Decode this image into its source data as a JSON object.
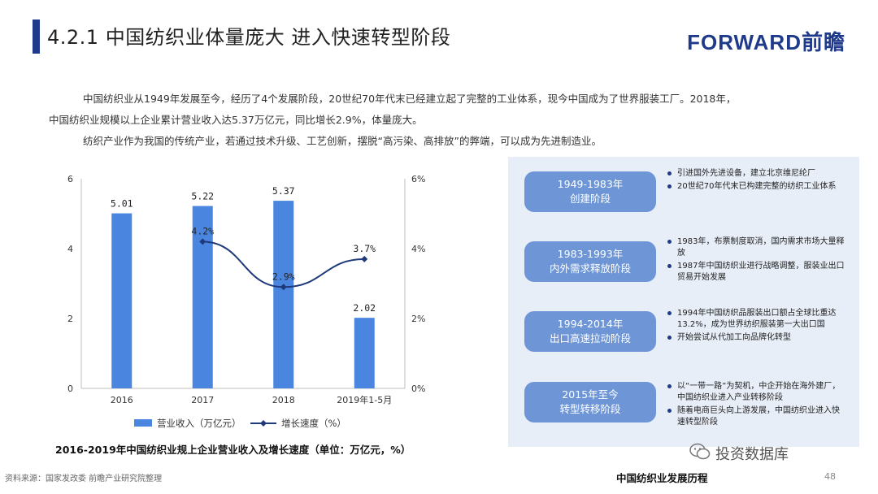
{
  "header": {
    "title": "4.2.1 中国纺织业体量庞大 进入快速转型阶段",
    "brand": "FORWARD前瞻"
  },
  "intro": {
    "line1": "中国纺织业从1949年发展至今，经历了4个发展阶段，20世纪70年代末已经建立起了完整的工业体系，现今中国成为了世界服装工厂。2018年，",
    "line2": "中国纺织业规模以上企业累计营业收入达5.37万亿元，同比增长2.9%，体量庞大。",
    "line3": "纺织产业作为我国的传统产业，若通过技术升级、工艺创新，摆脱“高污染、高排放”的弊端，可以成为先进制造业。"
  },
  "chart_data": {
    "type": "bar",
    "title": "2016-2019年中国纺织业规上企业营业收入及增长速度（单位：万亿元，%）",
    "categories": [
      "2016",
      "2017",
      "2018",
      "2019年1-5月"
    ],
    "series": [
      {
        "name": "营业收入（万亿元）",
        "type": "bar",
        "axis": "left",
        "values": [
          5.01,
          5.22,
          5.37,
          2.02
        ],
        "labels": [
          "5.01",
          "5.22",
          "5.37",
          "2.02"
        ]
      },
      {
        "name": "增长速度（%）",
        "type": "line",
        "axis": "right",
        "values": [
          null,
          4.2,
          2.9,
          3.7
        ],
        "labels": [
          "",
          "4.2%",
          "2.9%",
          "3.7%"
        ]
      }
    ],
    "ylim": [
      0,
      6
    ],
    "y_ticks": [
      "0",
      "2",
      "4",
      "6"
    ],
    "y2lim": [
      0,
      6
    ],
    "y2_ticks": [
      "0%",
      "2%",
      "4%",
      "6%"
    ],
    "legend_position": "bottom",
    "grid": false,
    "colors": {
      "bar": "#4a86e0",
      "line": "#1f3a7a"
    }
  },
  "stages": [
    {
      "period": "1949-1983年",
      "name": "创建阶段",
      "points": [
        "引进国外先进设备，建立北京维尼纶厂",
        "20世纪70年代末已构建完整的纺织工业体系"
      ]
    },
    {
      "period": "1983-1993年",
      "name": "内外需求释放阶段",
      "points": [
        "1983年，布票制度取消，国内需求市场大量释放",
        "1987年中国纺织业进行战略调整，服装业出口贸易开始发展"
      ]
    },
    {
      "period": "1994-2014年",
      "name": "出口高速拉动阶段",
      "points": [
        "1994年中国纺织品服装出口额占全球比重达13.2%，成为世界纺织服装第一大出口国",
        "开始尝试从代加工向品牌化转型"
      ]
    },
    {
      "period": "2015年至今",
      "name": "转型转移阶段",
      "points": [
        "以“一带一路”为契机，中企开始在海外建厂，中国纺织业进入产业转移阶段",
        "随着电商巨头向上游发展，中国纺织业进入快速转型阶段"
      ]
    }
  ],
  "footer": {
    "source": "资料来源：国家发改委 前瞻产业研究院整理",
    "section": "中国纺织业发展历程",
    "page": "48",
    "wechat": "投资数据库"
  }
}
